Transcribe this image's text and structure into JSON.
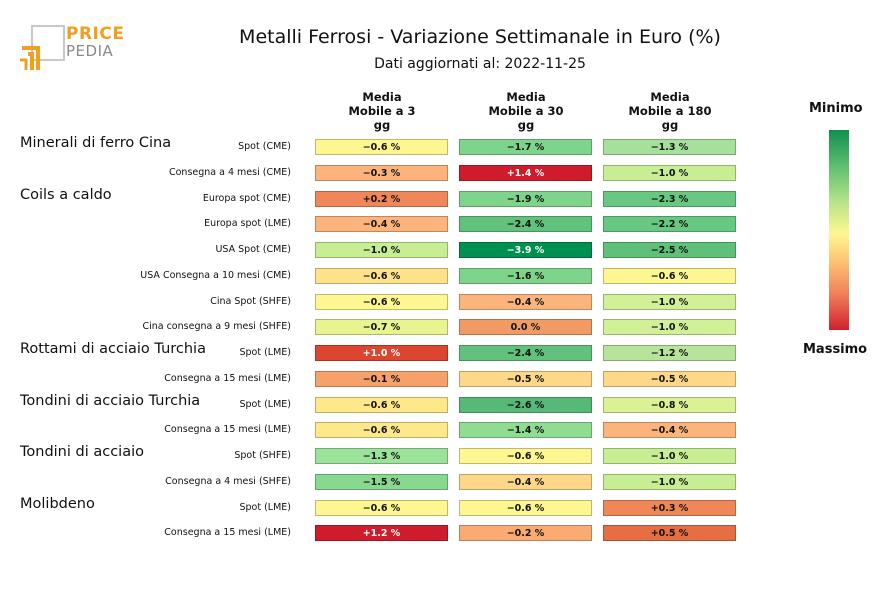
{
  "logo": {
    "word1": "PRICE",
    "word2": "PEDIA"
  },
  "chart_data": {
    "type": "heatmap",
    "title": "Metalli Ferrosi - Variazione Settimanale in Euro (%)",
    "subtitle": "Dati aggiornati al: 2022-11-25",
    "columns": [
      "Media\nMobile a 3\ngg",
      "Media\nMobile a 30\ngg",
      "Media\nMobile a 180\ngg"
    ],
    "legend": {
      "min_label": "Minimo",
      "max_label": "Massimo",
      "min_color": "#0f8f50",
      "max_color": "#d0202e"
    },
    "groups": [
      {
        "name": "Minerali di ferro Cina",
        "rows": [
          {
            "label": "Spot (CME)",
            "values": [
              "−0.6 %",
              "−1.7 %",
              "−1.3 %"
            ],
            "colors": [
              "#fef791",
              "#7fd48c",
              "#a5e19a"
            ]
          },
          {
            "label": "Consegna a 4 mesi (CME)",
            "values": [
              "−0.3 %",
              "+1.4 %",
              "−1.0 %"
            ],
            "colors": [
              "#fdb47c",
              "#cf1c2c",
              "#c8ee93"
            ]
          }
        ]
      },
      {
        "name": "Coils a caldo",
        "rows": [
          {
            "label": "Europa spot (CME)",
            "values": [
              "+0.2 %",
              "−1.9 %",
              "−2.3 %"
            ],
            "colors": [
              "#f0875a",
              "#7fd48c",
              "#68c883"
            ]
          },
          {
            "label": "Europa spot (LME)",
            "values": [
              "−0.4 %",
              "−2.4 %",
              "−2.2 %"
            ],
            "colors": [
              "#fdb47c",
              "#62c27c",
              "#68c883"
            ]
          },
          {
            "label": "USA Spot (CME)",
            "values": [
              "−1.0 %",
              "−3.9 %",
              "−2.5 %"
            ],
            "colors": [
              "#c8ee93",
              "#009150",
              "#5fc07a"
            ]
          },
          {
            "label": "USA Consegna a 10 mesi (CME)",
            "values": [
              "−0.6 %",
              "−1.6 %",
              "−0.6 %"
            ],
            "colors": [
              "#fee28a",
              "#7fd48c",
              "#fef791"
            ]
          },
          {
            "label": "Cina Spot (SHFE)",
            "values": [
              "−0.6 %",
              "−0.4 %",
              "−1.0 %"
            ],
            "colors": [
              "#fef791",
              "#fdb47c",
              "#d2f097"
            ]
          },
          {
            "label": "Cina consegna a 9 mesi (SHFE)",
            "values": [
              "−0.7 %",
              "0.0 %",
              "−1.0 %"
            ],
            "colors": [
              "#e7f48f",
              "#f29a64",
              "#d2f097"
            ]
          }
        ]
      },
      {
        "name": "Rottami di acciaio Turchia",
        "rows": [
          {
            "label": "Spot (LME)",
            "values": [
              "+1.0 %",
              "−2.4 %",
              "−1.2 %"
            ],
            "colors": [
              "#dc4530",
              "#62c27c",
              "#b6e49a"
            ]
          },
          {
            "label": "Consegna a 15 mesi (LME)",
            "values": [
              "−0.1 %",
              "−0.5 %",
              "−0.5 %"
            ],
            "colors": [
              "#f8a06b",
              "#fed789",
              "#fed789"
            ]
          }
        ]
      },
      {
        "name": "Tondini di acciaio Turchia",
        "rows": [
          {
            "label": "Spot (LME)",
            "values": [
              "−0.6 %",
              "−2.6 %",
              "−0.8 %"
            ],
            "colors": [
              "#fee88a",
              "#57b978",
              "#daf295"
            ]
          },
          {
            "label": "Consegna a 15 mesi (LME)",
            "values": [
              "−0.6 %",
              "−1.4 %",
              "−0.4 %"
            ],
            "colors": [
              "#fee88a",
              "#90dc92",
              "#fdb47c"
            ]
          }
        ]
      },
      {
        "name": "Tondini di acciaio",
        "rows": [
          {
            "label": "Spot (SHFE)",
            "values": [
              "−1.3 %",
              "−0.6 %",
              "−1.0 %"
            ],
            "colors": [
              "#9be29a",
              "#fef791",
              "#c8ee93"
            ]
          },
          {
            "label": "Consegna a 4 mesi (SHFE)",
            "values": [
              "−1.5 %",
              "−0.4 %",
              "−1.0 %"
            ],
            "colors": [
              "#88d98f",
              "#fed789",
              "#c8ee93"
            ]
          }
        ]
      },
      {
        "name": "Molibdeno",
        "rows": [
          {
            "label": "Spot (LME)",
            "values": [
              "−0.6 %",
              "−0.6 %",
              "+0.3 %"
            ],
            "colors": [
              "#fef791",
              "#fef791",
              "#f08757"
            ]
          },
          {
            "label": "Consegna a 15 mesi (LME)",
            "values": [
              "+1.2 %",
              "−0.2 %",
              "+0.5 %"
            ],
            "colors": [
              "#cf1c2c",
              "#fbaa73",
              "#e66e45"
            ]
          }
        ]
      }
    ]
  }
}
